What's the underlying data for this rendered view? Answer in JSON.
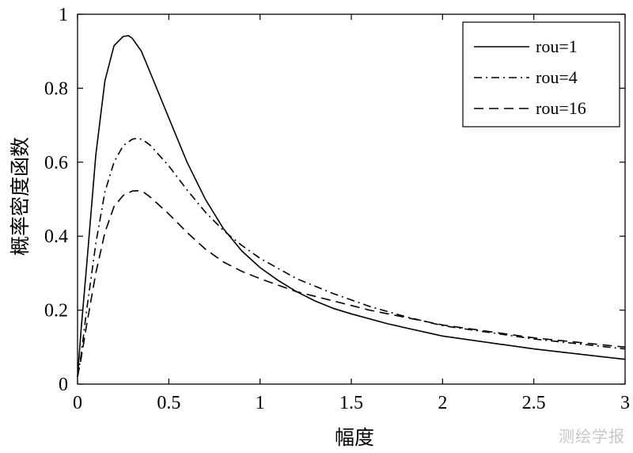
{
  "chart_data": {
    "type": "line",
    "title": "",
    "xlabel": "幅度",
    "ylabel": "概率密度函数",
    "xlim": [
      0,
      3
    ],
    "ylim": [
      0,
      1
    ],
    "xticks": [
      "0",
      "0.5",
      "1",
      "1.5",
      "2",
      "2.5",
      "3"
    ],
    "yticks": [
      "0",
      "0.2",
      "0.4",
      "0.6",
      "0.8",
      "1"
    ],
    "grid": false,
    "legend_position": "top-right",
    "series": [
      {
        "name": "rou=1",
        "style": "solid",
        "x": [
          0,
          0.02,
          0.05,
          0.1,
          0.15,
          0.2,
          0.25,
          0.28,
          0.3,
          0.35,
          0.4,
          0.5,
          0.6,
          0.7,
          0.8,
          0.9,
          1.0,
          1.1,
          1.2,
          1.3,
          1.4,
          1.5,
          1.7,
          2.0,
          2.5,
          3.0
        ],
        "y": [
          0.02,
          0.15,
          0.32,
          0.62,
          0.82,
          0.915,
          0.94,
          0.942,
          0.935,
          0.9,
          0.84,
          0.72,
          0.6,
          0.5,
          0.42,
          0.36,
          0.315,
          0.28,
          0.25,
          0.225,
          0.205,
          0.19,
          0.163,
          0.13,
          0.095,
          0.067
        ]
      },
      {
        "name": "rou=4",
        "style": "dashdot",
        "x": [
          0,
          0.02,
          0.05,
          0.1,
          0.15,
          0.2,
          0.25,
          0.3,
          0.33,
          0.36,
          0.4,
          0.5,
          0.6,
          0.7,
          0.8,
          0.9,
          1.0,
          1.2,
          1.4,
          1.6,
          1.8,
          2.0,
          2.5,
          3.0
        ],
        "y": [
          0.02,
          0.08,
          0.2,
          0.38,
          0.52,
          0.6,
          0.645,
          0.662,
          0.665,
          0.66,
          0.645,
          0.59,
          0.525,
          0.465,
          0.415,
          0.375,
          0.34,
          0.285,
          0.245,
          0.21,
          0.182,
          0.158,
          0.122,
          0.095
        ]
      },
      {
        "name": "rou=16",
        "style": "dashed",
        "x": [
          0,
          0.02,
          0.05,
          0.1,
          0.15,
          0.2,
          0.25,
          0.3,
          0.33,
          0.36,
          0.4,
          0.5,
          0.6,
          0.7,
          0.8,
          0.9,
          1.0,
          1.2,
          1.4,
          1.6,
          1.8,
          2.0,
          2.5,
          3.0
        ],
        "y": [
          0.02,
          0.07,
          0.16,
          0.3,
          0.41,
          0.48,
          0.51,
          0.522,
          0.523,
          0.52,
          0.505,
          0.46,
          0.41,
          0.365,
          0.33,
          0.305,
          0.285,
          0.25,
          0.225,
          0.2,
          0.18,
          0.16,
          0.125,
          0.1
        ]
      }
    ]
  },
  "watermark": "测绘学报"
}
